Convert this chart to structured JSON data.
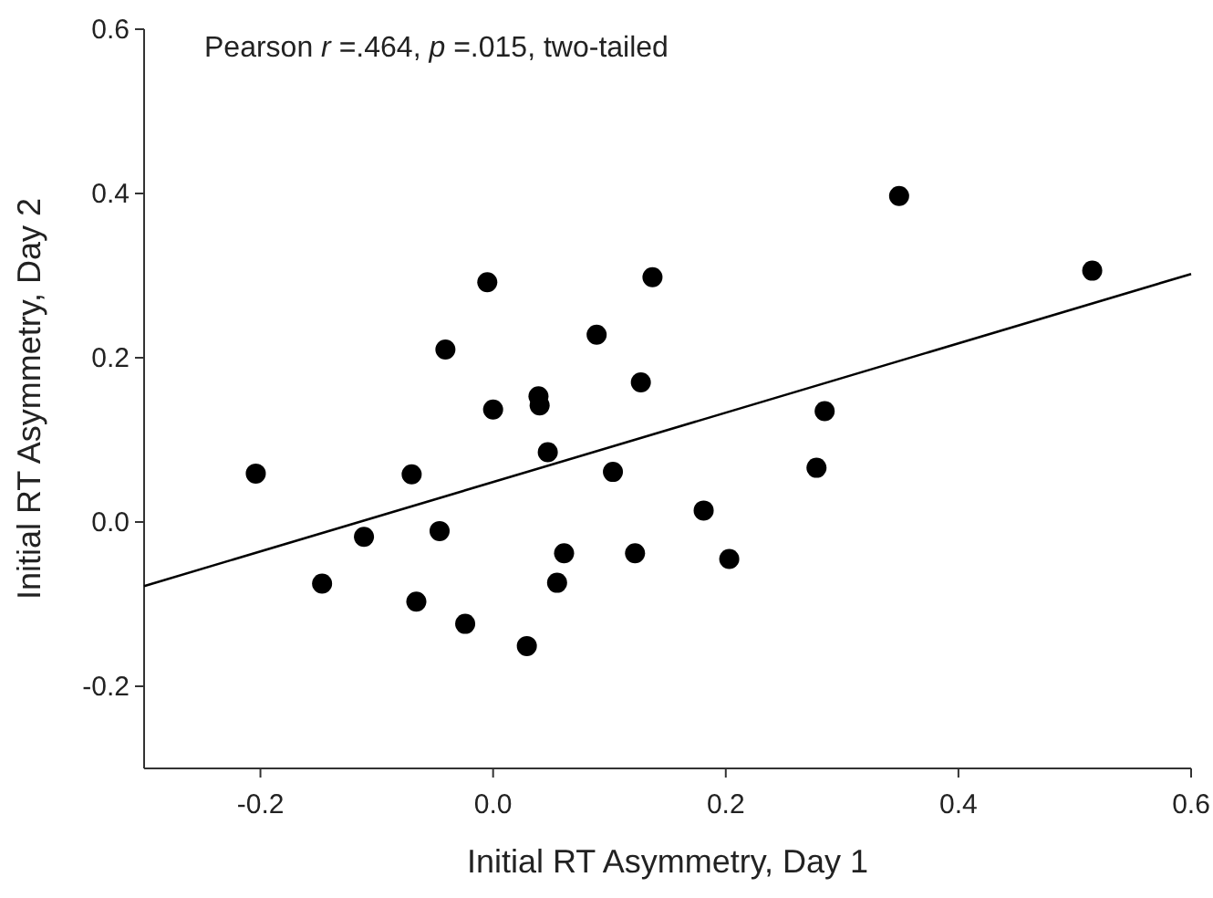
{
  "chart_data": {
    "type": "scatter",
    "xlabel": "Initial RT Asymmetry, Day 1",
    "ylabel": "Initial RT Asymmetry, Day 2",
    "annotations": [
      "Pearson r =.464, p =.015, two-tailed"
    ],
    "xlim": [
      -0.3,
      0.6
    ],
    "ylim": [
      -0.3,
      0.6
    ],
    "xticks": [
      {
        "value": -0.2,
        "label": "-0.2"
      },
      {
        "value": 0,
        "label": "0.0"
      },
      {
        "value": 0.2,
        "label": "0.2"
      },
      {
        "value": 0.4,
        "label": "0.4"
      },
      {
        "value": 0.6,
        "label": "0.6"
      }
    ],
    "yticks": [
      {
        "value": -0.2,
        "label": "-0.2"
      },
      {
        "value": 0,
        "label": "0.0"
      },
      {
        "value": 0.2,
        "label": "0.2"
      },
      {
        "value": 0.4,
        "label": "0.4"
      },
      {
        "value": 0.6,
        "label": "0.6"
      }
    ],
    "grid": false,
    "marker": "circle",
    "series": [
      {
        "color": "#000000",
        "x": [
          -0.204,
          -0.147,
          -0.111,
          -0.07,
          -0.066,
          -0.046,
          -0.041,
          -0.024,
          -0.005,
          0.0,
          0.029,
          0.039,
          0.04,
          0.047,
          0.055,
          0.061,
          0.089,
          0.103,
          0.127,
          0.122,
          0.137,
          0.181,
          0.203,
          0.278,
          0.285,
          0.349,
          0.515
        ],
        "values": [
          0.059,
          -0.075,
          -0.018,
          0.058,
          -0.097,
          -0.011,
          0.21,
          -0.124,
          0.292,
          0.137,
          -0.151,
          0.153,
          0.142,
          0.085,
          -0.074,
          -0.038,
          0.228,
          0.061,
          0.17,
          -0.038,
          0.298,
          0.014,
          -0.045,
          0.066,
          0.135,
          0.397,
          0.306
        ]
      },
      {
        "type": "line",
        "color": "#000000",
        "line_style": "solid",
        "marker": "none",
        "x": [
          -0.3,
          0.6
        ],
        "values": [
          -0.078,
          0.302
        ]
      }
    ]
  }
}
